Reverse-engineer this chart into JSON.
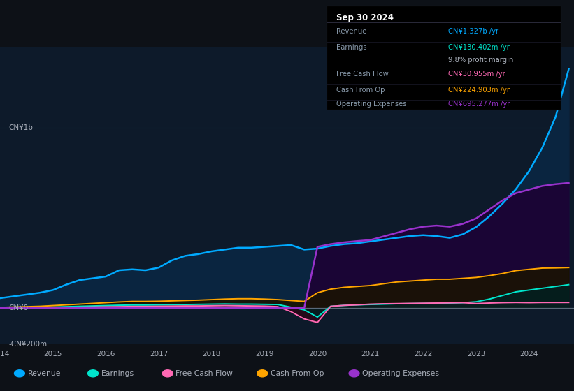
{
  "bg_color": "#0d1117",
  "plot_bg_color": "#0d1a2a",
  "text_color": "#aab0bb",
  "grid_color": "#1a2e40",
  "zero_line_color": "#5a6a7a",
  "x_years": [
    2014.0,
    2014.25,
    2014.5,
    2014.75,
    2015.0,
    2015.25,
    2015.5,
    2015.75,
    2016.0,
    2016.25,
    2016.5,
    2016.75,
    2017.0,
    2017.25,
    2017.5,
    2017.75,
    2018.0,
    2018.25,
    2018.5,
    2018.75,
    2019.0,
    2019.25,
    2019.5,
    2019.75,
    2020.0,
    2020.25,
    2020.5,
    2020.75,
    2021.0,
    2021.25,
    2021.5,
    2021.75,
    2022.0,
    2022.25,
    2022.5,
    2022.75,
    2023.0,
    2023.25,
    2023.5,
    2023.75,
    2024.0,
    2024.25,
    2024.5,
    2024.75
  ],
  "revenue": [
    55,
    65,
    75,
    85,
    100,
    130,
    155,
    165,
    175,
    210,
    215,
    210,
    225,
    265,
    290,
    300,
    315,
    325,
    335,
    335,
    340,
    345,
    350,
    325,
    330,
    345,
    355,
    360,
    370,
    380,
    390,
    400,
    405,
    400,
    390,
    410,
    450,
    510,
    580,
    660,
    760,
    890,
    1060,
    1327
  ],
  "earnings": [
    2,
    3,
    4,
    5,
    6,
    8,
    10,
    12,
    14,
    16,
    17,
    17,
    18,
    19,
    20,
    21,
    22,
    23,
    22,
    22,
    21,
    20,
    5,
    -10,
    -50,
    10,
    15,
    18,
    20,
    22,
    24,
    25,
    26,
    27,
    28,
    30,
    35,
    50,
    70,
    90,
    100,
    110,
    120,
    130
  ],
  "free_cash_flow": [
    1,
    1.5,
    2,
    2.5,
    3,
    4,
    5,
    6,
    7,
    8,
    9,
    9,
    10,
    11,
    12,
    12,
    13,
    14,
    13,
    12,
    11,
    8,
    -20,
    -60,
    -80,
    10,
    15,
    18,
    22,
    24,
    25,
    26,
    27,
    28,
    29,
    30,
    25,
    28,
    30,
    31,
    30,
    31,
    31,
    31
  ],
  "cash_from_op": [
    4,
    6,
    8,
    10,
    14,
    18,
    22,
    26,
    30,
    34,
    37,
    37,
    38,
    40,
    42,
    44,
    47,
    50,
    52,
    52,
    50,
    47,
    42,
    37,
    85,
    105,
    115,
    120,
    125,
    135,
    145,
    150,
    155,
    160,
    160,
    165,
    170,
    180,
    192,
    208,
    215,
    222,
    223,
    225
  ],
  "operating_expenses": [
    0,
    0,
    0,
    0,
    0,
    0,
    0,
    0,
    0,
    0,
    0,
    0,
    0,
    0,
    0,
    0,
    0,
    0,
    0,
    0,
    0,
    0,
    0,
    0,
    340,
    355,
    365,
    372,
    378,
    398,
    418,
    438,
    452,
    458,
    452,
    468,
    498,
    548,
    598,
    638,
    658,
    678,
    688,
    695
  ],
  "revenue_color": "#00aaff",
  "earnings_color": "#00e5cc",
  "free_cash_flow_color": "#ff69b4",
  "cash_from_op_color": "#ffa500",
  "op_expenses_color": "#9932cc",
  "ylim_min": -200,
  "ylim_max": 1450,
  "legend": [
    {
      "label": "Revenue",
      "color": "#00aaff"
    },
    {
      "label": "Earnings",
      "color": "#00e5cc"
    },
    {
      "label": "Free Cash Flow",
      "color": "#ff69b4"
    },
    {
      "label": "Cash From Op",
      "color": "#ffa500"
    },
    {
      "label": "Operating Expenses",
      "color": "#9932cc"
    }
  ],
  "info_rows": [
    {
      "label": "Revenue",
      "value": "CN¥1.327b /yr",
      "val_color": "#00aaff"
    },
    {
      "label": "Earnings",
      "value": "CN¥130.402m /yr",
      "val_color": "#00e5cc"
    },
    {
      "label": "",
      "value": "9.8% profit margin",
      "val_color": "#aab0bb"
    },
    {
      "label": "Free Cash Flow",
      "value": "CN¥30.955m /yr",
      "val_color": "#ff69b4"
    },
    {
      "label": "Cash From Op",
      "value": "CN¥224.903m /yr",
      "val_color": "#ffa500"
    },
    {
      "label": "Operating Expenses",
      "value": "CN¥695.277m /yr",
      "val_color": "#9932cc"
    }
  ]
}
